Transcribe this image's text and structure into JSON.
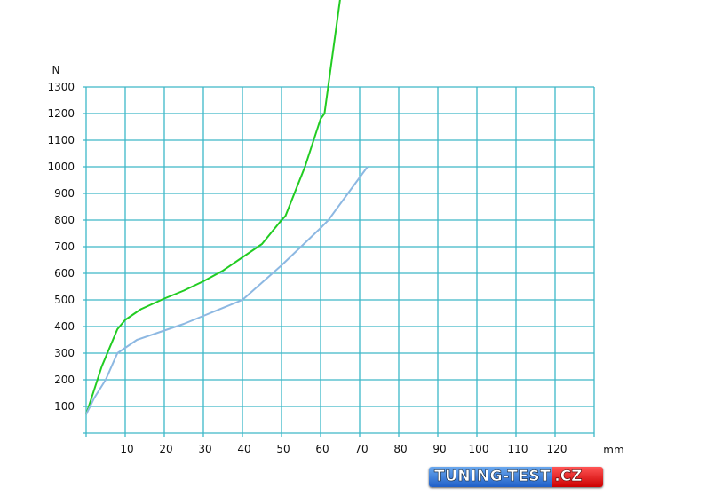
{
  "chart_data": {
    "type": "line",
    "title": "",
    "xlabel": "mm",
    "ylabel": "N",
    "xlim": [
      0,
      130
    ],
    "ylim": [
      0,
      1300
    ],
    "grid": true,
    "x_ticks": [
      10,
      20,
      30,
      40,
      50,
      60,
      70,
      80,
      90,
      100,
      110,
      120
    ],
    "y_ticks": [
      100,
      200,
      300,
      400,
      500,
      600,
      700,
      800,
      900,
      1000,
      1100,
      1200,
      1300
    ],
    "series": [
      {
        "color": "#22cc22",
        "points": [
          [
            0,
            70
          ],
          [
            4,
            250
          ],
          [
            8,
            390
          ],
          [
            10,
            425
          ],
          [
            14,
            465
          ],
          [
            20,
            505
          ],
          [
            25,
            535
          ],
          [
            30,
            570
          ],
          [
            35,
            610
          ],
          [
            40,
            660
          ],
          [
            45,
            710
          ],
          [
            50,
            800
          ],
          [
            51,
            815
          ],
          [
            56,
            1000
          ],
          [
            60,
            1180
          ],
          [
            61,
            1200
          ],
          [
            65,
            1630
          ]
        ]
      },
      {
        "color": "#8db8e2",
        "points": [
          [
            0,
            70
          ],
          [
            2,
            130
          ],
          [
            5,
            200
          ],
          [
            8,
            300
          ],
          [
            10,
            320
          ],
          [
            13,
            350
          ],
          [
            20,
            385
          ],
          [
            25,
            410
          ],
          [
            30,
            440
          ],
          [
            40,
            500
          ],
          [
            45,
            565
          ],
          [
            50,
            630
          ],
          [
            55,
            700
          ],
          [
            60,
            770
          ],
          [
            62,
            800
          ],
          [
            67,
            900
          ],
          [
            72,
            1000
          ]
        ]
      }
    ],
    "grid_color": "#3db8c8"
  },
  "logo": {
    "main": "TUNING-TEST",
    "suffix": ".CZ"
  }
}
